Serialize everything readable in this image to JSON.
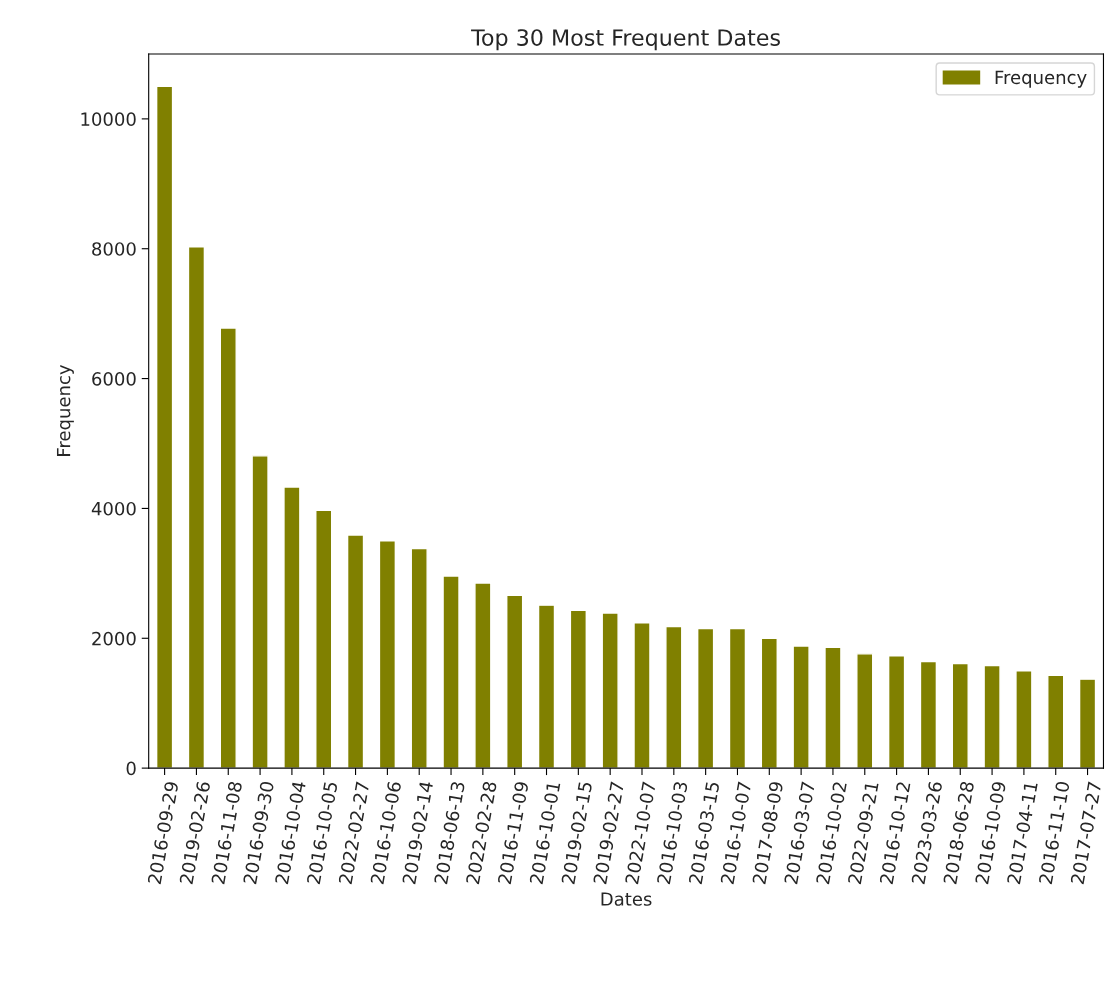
{
  "chart_data": {
    "type": "bar",
    "title": "Top 30 Most Frequent Dates",
    "xlabel": "Dates",
    "ylabel": "Frequency",
    "categories": [
      "2016-09-29",
      "2019-02-26",
      "2016-11-08",
      "2016-09-30",
      "2016-10-04",
      "2016-10-05",
      "2022-02-27",
      "2016-10-06",
      "2019-02-14",
      "2018-06-13",
      "2022-02-28",
      "2016-11-09",
      "2016-10-01",
      "2019-02-15",
      "2019-02-27",
      "2022-10-07",
      "2016-10-03",
      "2016-03-15",
      "2016-10-07",
      "2017-08-09",
      "2016-03-07",
      "2016-10-02",
      "2022-09-21",
      "2016-10-12",
      "2023-03-26",
      "2018-06-28",
      "2016-10-09",
      "2017-04-11",
      "2016-11-10",
      "2017-07-27"
    ],
    "series": [
      {
        "name": "Frequency",
        "color": "#808000",
        "values": [
          10500,
          8030,
          6780,
          4810,
          4330,
          3970,
          3590,
          3500,
          3380,
          2960,
          2850,
          2660,
          2510,
          2430,
          2390,
          2240,
          2180,
          2150,
          2150,
          2000,
          1880,
          1860,
          1760,
          1730,
          1640,
          1610,
          1580,
          1500,
          1430,
          1370
        ]
      }
    ],
    "ylim": [
      0,
      11000
    ],
    "yticks": [
      0,
      2000,
      4000,
      6000,
      8000,
      10000
    ],
    "grid": false,
    "legend": "top right"
  }
}
